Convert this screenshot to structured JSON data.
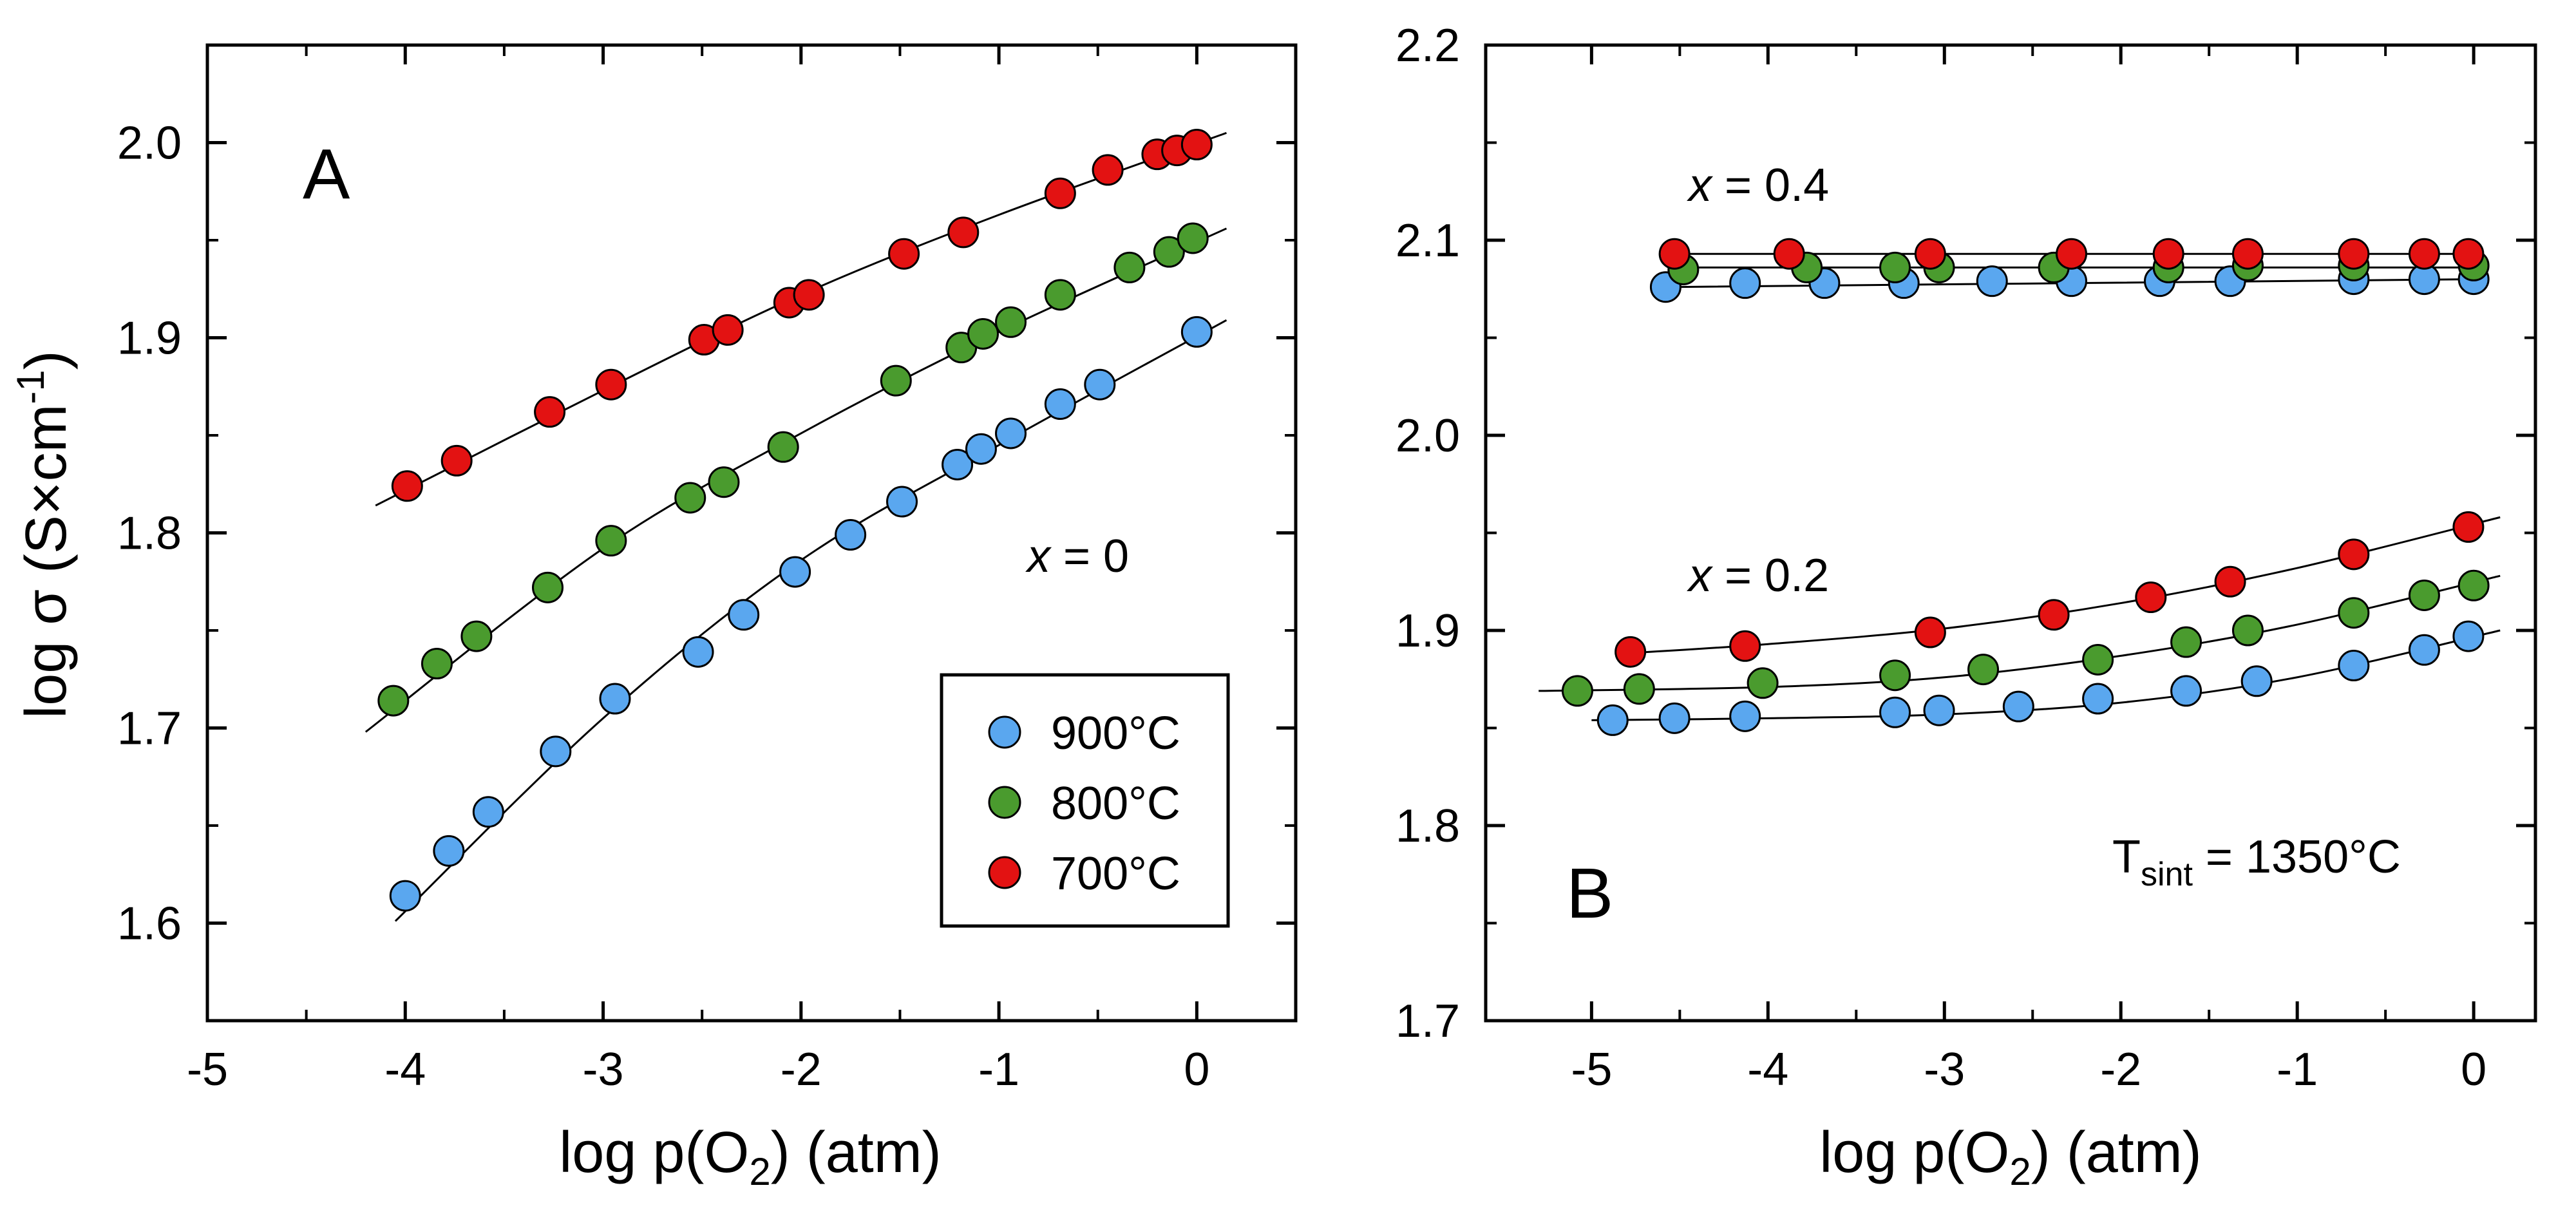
{
  "colors": {
    "900C": "#5aa7ef",
    "800C": "#4a9b2e",
    "700C": "#e31212",
    "line": "#000000"
  },
  "chart_data": [
    {
      "type": "scatter",
      "panel": "A",
      "xlabel_main": "log p(O",
      "xlabel_sub": "2",
      "xlabel_tail": ") (atm)",
      "ylabel_main": "log σ (S×cm",
      "ylabel_sup": "-1",
      "ylabel_tail": ")",
      "xlim": [
        -5,
        0.5
      ],
      "ylim": [
        1.55,
        2.05
      ],
      "xticks": [
        -5,
        -4,
        -3,
        -2,
        -1,
        0
      ],
      "xtick_labels": [
        "-5",
        "-4",
        "-3",
        "-2",
        "-1",
        "0"
      ],
      "yticks": [
        1.6,
        1.7,
        1.8,
        1.9,
        2.0
      ],
      "ytick_labels": [
        "1.6",
        "1.7",
        "1.8",
        "1.9",
        "2.0"
      ],
      "annotation": {
        "italic": "x",
        "rest": " = 0"
      },
      "legend": [
        "900°C",
        "800°C",
        "700°C"
      ],
      "series": [
        {
          "name": "900°C",
          "color_key": "900C",
          "x": [
            -4.0,
            -3.78,
            -3.58,
            -3.24,
            -2.94,
            -2.52,
            -2.29,
            -2.03,
            -1.75,
            -1.49,
            -1.21,
            -1.09,
            -0.94,
            -0.69,
            -0.49,
            0.0
          ],
          "y": [
            1.614,
            1.637,
            1.657,
            1.688,
            1.715,
            1.739,
            1.758,
            1.78,
            1.799,
            1.816,
            1.835,
            1.843,
            1.851,
            1.866,
            1.876,
            1.903
          ],
          "fit_x": [
            -4.05,
            -3.0,
            -2.0,
            -1.0,
            0.15
          ],
          "fit_y": [
            1.601,
            1.705,
            1.786,
            1.845,
            1.909
          ]
        },
        {
          "name": "800°C",
          "color_key": "800C",
          "x": [
            -4.06,
            -3.84,
            -3.64,
            -3.28,
            -2.96,
            -2.56,
            -2.39,
            -2.09,
            -1.52,
            -1.19,
            -1.08,
            -0.94,
            -0.69,
            -0.34,
            -0.14,
            -0.02
          ],
          "y": [
            1.714,
            1.733,
            1.747,
            1.772,
            1.796,
            1.818,
            1.826,
            1.844,
            1.878,
            1.895,
            1.902,
            1.908,
            1.922,
            1.936,
            1.944,
            1.951
          ],
          "fit_x": [
            -4.2,
            -3.0,
            -2.0,
            -1.0,
            0.15
          ],
          "fit_y": [
            1.698,
            1.792,
            1.851,
            1.903,
            1.956
          ]
        },
        {
          "name": "700°C",
          "color_key": "700C",
          "x": [
            -3.99,
            -3.74,
            -3.27,
            -2.96,
            -2.49,
            -2.37,
            -2.06,
            -1.96,
            -1.48,
            -1.18,
            -0.69,
            -0.45,
            -0.2,
            -0.1,
            0.0
          ],
          "y": [
            1.824,
            1.837,
            1.862,
            1.876,
            1.899,
            1.904,
            1.918,
            1.922,
            1.943,
            1.954,
            1.974,
            1.986,
            1.994,
            1.996,
            1.999
          ],
          "fit_x": [
            -4.15,
            -3.0,
            -2.0,
            -1.0,
            0.15
          ],
          "fit_y": [
            1.814,
            1.873,
            1.922,
            1.963,
            2.005
          ]
        }
      ]
    },
    {
      "type": "scatter",
      "panel": "B",
      "xlabel_main": "log p(O",
      "xlabel_sub": "2",
      "xlabel_tail": ") (atm)",
      "xlim": [
        -5.6,
        0.35
      ],
      "ylim": [
        1.7,
        2.2
      ],
      "xticks": [
        -5,
        -4,
        -3,
        -2,
        -1,
        0
      ],
      "xtick_labels": [
        "-5",
        "-4",
        "-3",
        "-2",
        "-1",
        "0"
      ],
      "yticks": [
        1.7,
        1.8,
        1.9,
        2.0,
        2.1,
        2.2
      ],
      "ytick_labels": [
        "1.7",
        "1.8",
        "1.9",
        "2.0",
        "2.1",
        "2.2"
      ],
      "annotation_top": {
        "italic": "x",
        "rest": " = 0.4"
      },
      "annotation_bottom": {
        "italic": "x",
        "rest": " = 0.2"
      },
      "sinter": {
        "main": "T",
        "sub": "sint",
        "rest": " = 1350°C"
      },
      "series": [
        {
          "name": "900°C x=0.4",
          "color_key": "900C",
          "x": [
            -4.58,
            -4.13,
            -3.68,
            -3.23,
            -2.73,
            -2.28,
            -1.78,
            -1.38,
            -0.68,
            -0.28,
            0.0
          ],
          "y": [
            2.076,
            2.078,
            2.078,
            2.078,
            2.079,
            2.079,
            2.079,
            2.079,
            2.08,
            2.08,
            2.08
          ],
          "fit_x": [
            -4.55,
            0.0
          ],
          "fit_y": [
            2.076,
            2.08
          ]
        },
        {
          "name": "800°C x=0.4",
          "color_key": "800C",
          "x": [
            -4.48,
            -3.78,
            -3.28,
            -3.03,
            -2.38,
            -1.73,
            -1.28,
            -0.68,
            0.0
          ],
          "y": [
            2.085,
            2.086,
            2.086,
            2.086,
            2.086,
            2.086,
            2.087,
            2.087,
            2.087
          ],
          "fit_x": [
            -4.55,
            0.0
          ],
          "fit_y": [
            2.086,
            2.086
          ]
        },
        {
          "name": "700°C x=0.4",
          "color_key": "700C",
          "x": [
            -4.53,
            -3.88,
            -3.08,
            -2.28,
            -1.73,
            -1.28,
            -0.68,
            -0.28,
            -0.03
          ],
          "y": [
            2.093,
            2.093,
            2.093,
            2.093,
            2.093,
            2.093,
            2.093,
            2.093,
            2.093
          ],
          "fit_x": [
            -4.55,
            0.0
          ],
          "fit_y": [
            2.093,
            2.093
          ]
        },
        {
          "name": "900°C x=0.2",
          "color_key": "900C",
          "x": [
            -4.88,
            -4.53,
            -4.13,
            -3.28,
            -3.03,
            -2.58,
            -2.13,
            -1.63,
            -1.23,
            -0.68,
            -0.28,
            -0.03
          ],
          "y": [
            1.854,
            1.855,
            1.856,
            1.858,
            1.859,
            1.861,
            1.865,
            1.869,
            1.874,
            1.882,
            1.89,
            1.897
          ],
          "fit_x": [
            -5.0,
            -4.0,
            -3.0,
            -2.0,
            -1.0,
            0.15
          ],
          "fit_y": [
            1.854,
            1.855,
            1.857,
            1.863,
            1.876,
            1.9
          ]
        },
        {
          "name": "800°C x=0.2",
          "color_key": "800C",
          "x": [
            -5.08,
            -4.73,
            -4.03,
            -3.28,
            -2.78,
            -2.13,
            -1.63,
            -1.28,
            -0.68,
            -0.28,
            0.0
          ],
          "y": [
            1.869,
            1.87,
            1.873,
            1.877,
            1.88,
            1.885,
            1.894,
            1.9,
            1.909,
            1.918,
            1.923
          ],
          "fit_x": [
            -5.3,
            -4.0,
            -3.0,
            -2.0,
            -1.0,
            0.15
          ],
          "fit_y": [
            1.869,
            1.871,
            1.876,
            1.887,
            1.903,
            1.928
          ]
        },
        {
          "name": "700°C x=0.2",
          "color_key": "700C",
          "x": [
            -4.78,
            -4.13,
            -3.08,
            -2.38,
            -1.83,
            -1.38,
            -0.68,
            -0.03
          ],
          "y": [
            1.889,
            1.892,
            1.899,
            1.908,
            1.917,
            1.925,
            1.939,
            1.953
          ],
          "fit_x": [
            -4.85,
            -4.0,
            -3.0,
            -2.0,
            -1.0,
            0.15
          ],
          "fit_y": [
            1.888,
            1.893,
            1.901,
            1.914,
            1.932,
            1.958
          ]
        }
      ]
    }
  ]
}
